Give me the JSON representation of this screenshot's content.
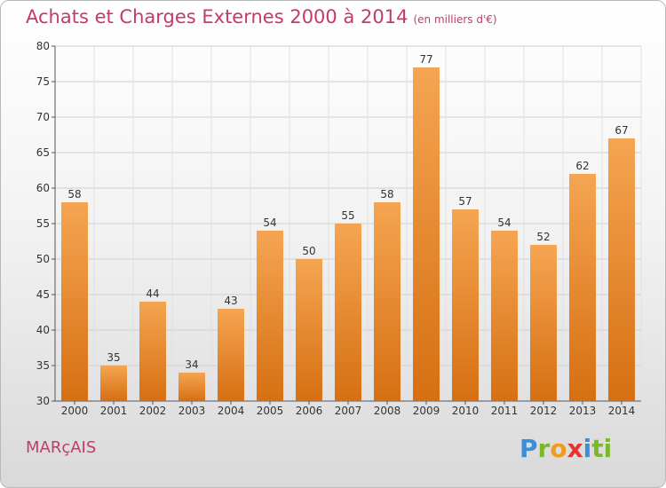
{
  "chart_data": {
    "type": "bar",
    "title": "Achats et Charges Externes 2000 à 2014",
    "unit": "(en milliers d'€)",
    "categories": [
      "2000",
      "2001",
      "2002",
      "2003",
      "2004",
      "2005",
      "2006",
      "2007",
      "2008",
      "2009",
      "2010",
      "2011",
      "2012",
      "2013",
      "2014"
    ],
    "values": [
      58,
      35,
      44,
      34,
      43,
      54,
      50,
      55,
      58,
      77,
      57,
      54,
      52,
      62,
      67
    ],
    "ylim": [
      30,
      80
    ],
    "yticks": [
      30,
      35,
      40,
      45,
      50,
      55,
      60,
      65,
      70,
      75,
      80
    ],
    "grid": true,
    "bar_color_top": "#f5a552",
    "bar_color_bottom": "#d66f12"
  },
  "footer": {
    "commune": "MARçAIS",
    "logo": [
      "P",
      "r",
      "o",
      "x",
      "i",
      "ti"
    ]
  }
}
